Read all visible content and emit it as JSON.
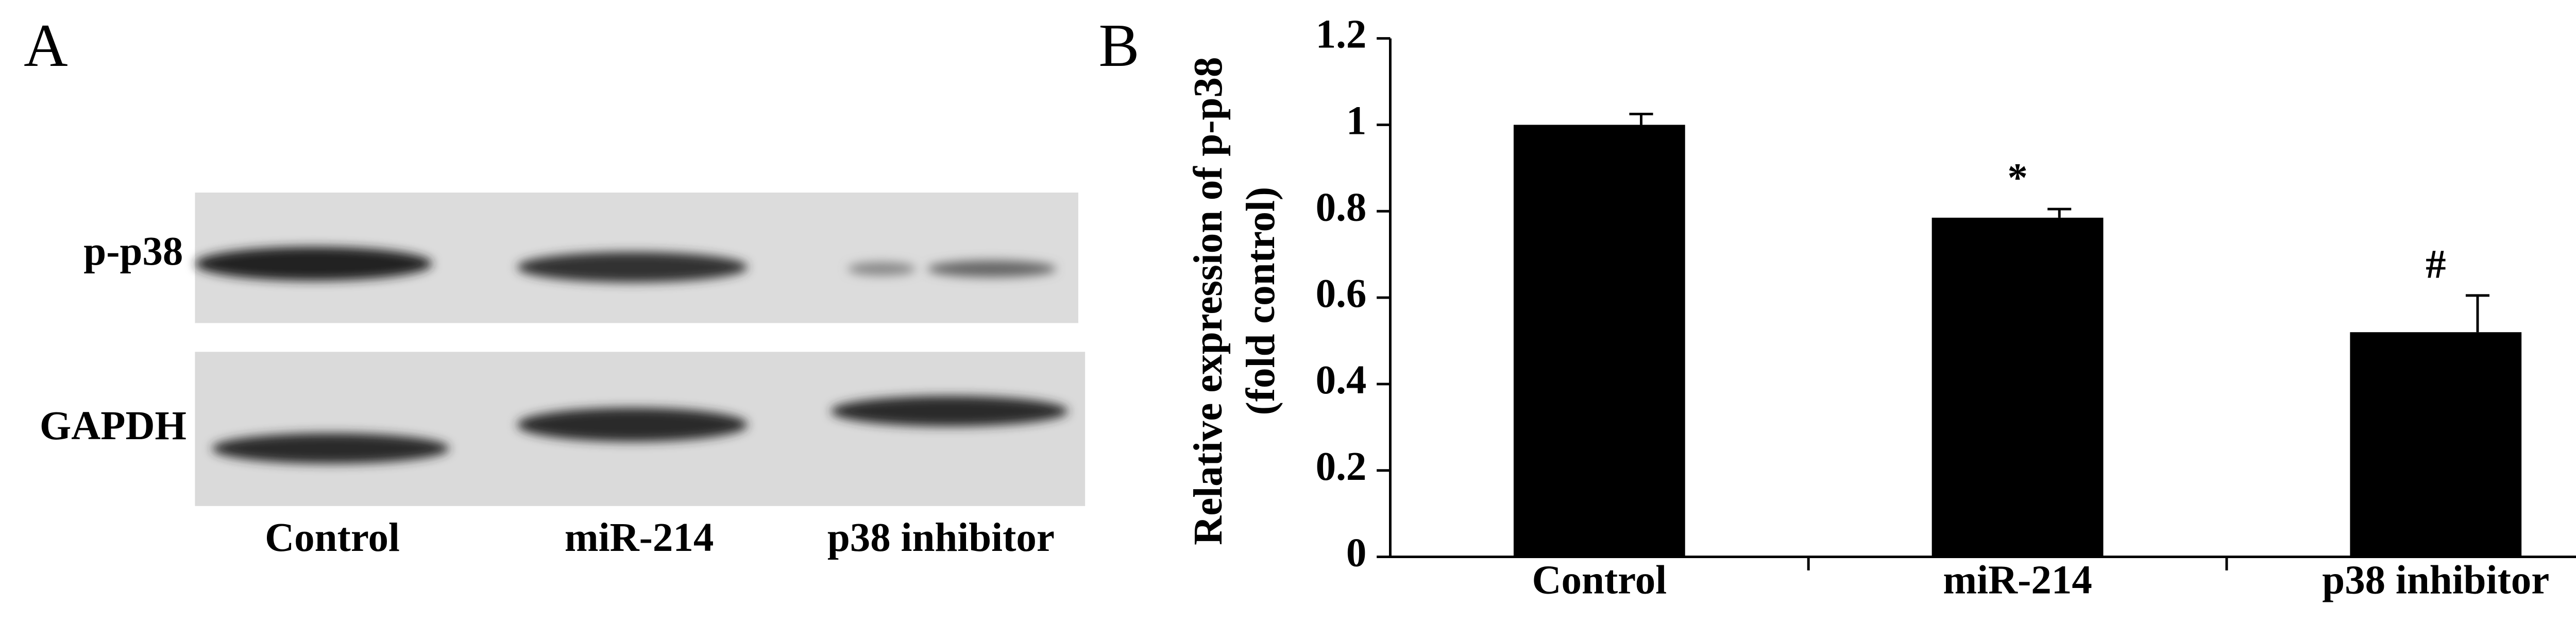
{
  "panel_labels": [
    "A",
    "B"
  ],
  "blot": {
    "row_labels": [
      "p-p38",
      "GAPDH"
    ],
    "lane_labels": [
      "Control",
      "miR-214",
      "p38 inhibitor"
    ]
  },
  "chart_data": {
    "type": "bar",
    "categories": [
      "Control",
      "miR-214",
      "p38 inhibitor"
    ],
    "values": [
      1.0,
      0.785,
      0.52
    ],
    "errors": [
      0.025,
      0.02,
      0.085
    ],
    "value_annotations": [
      null,
      "*",
      "#"
    ],
    "color": "#000000",
    "y_label": [
      "Relative expression of p-p38",
      "(fold control)"
    ],
    "ylim": [
      0,
      1.2
    ],
    "yticks": [
      0,
      0.2,
      0.4,
      0.6,
      0.8,
      1,
      1.2
    ]
  }
}
